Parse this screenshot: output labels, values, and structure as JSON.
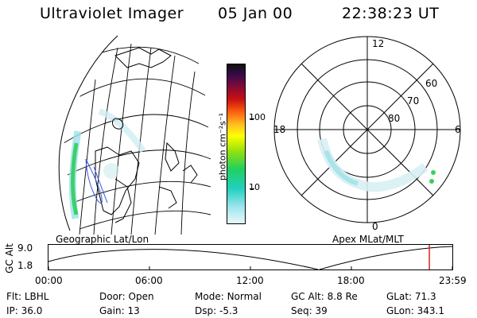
{
  "header": {
    "instrument": "Ultraviolet Imager",
    "date": "05 Jan 00",
    "time": "22:38:23 UT"
  },
  "colorbar": {
    "unit_label": "photon cm⁻²s⁻¹",
    "ticks": [
      "100",
      "10"
    ]
  },
  "polar": {
    "mlt_labels": [
      "12",
      "18",
      "6",
      "0"
    ],
    "lat_labels": [
      "60",
      "70",
      "80"
    ]
  },
  "map_labels": {
    "left": "Geographic Lat/Lon",
    "right": "Apex MLat/MLT"
  },
  "timeline": {
    "ylabel": "GC Alt",
    "y_ticks": [
      "9.0",
      "1.8"
    ],
    "x_ticks": [
      "00:00",
      "06:00",
      "12:00",
      "18:00",
      "23:59"
    ],
    "current_time_fraction": 0.943
  },
  "status": {
    "row1": [
      {
        "key": "Flt:",
        "value": "LBHL"
      },
      {
        "key": "Door:",
        "value": "Open"
      },
      {
        "key": "Mode:",
        "value": "Normal"
      },
      {
        "key": "GC Alt:",
        "value": "8.8 Re"
      },
      {
        "key": "GLat:",
        "value": "71.3"
      }
    ],
    "row2": [
      {
        "key": "IP:",
        "value": "36.0"
      },
      {
        "key": "Gain:",
        "value": "13"
      },
      {
        "key": "Dsp:",
        "value": "-5.3"
      },
      {
        "key": "Seq:",
        "value": "39"
      },
      {
        "key": "GLon:",
        "value": "343.1"
      }
    ]
  }
}
